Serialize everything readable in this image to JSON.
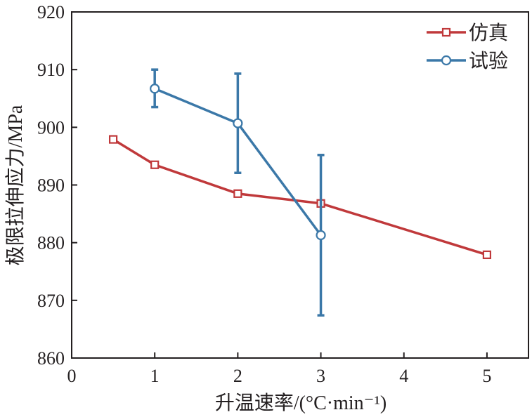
{
  "chart_data": {
    "type": "line",
    "title": "",
    "xlabel": "升温速率/(°C·min⁻¹)",
    "ylabel": "极限拉伸应力/MPa",
    "xlim": [
      0,
      5.5
    ],
    "ylim": [
      860,
      920
    ],
    "xticks": [
      0,
      1,
      2,
      3,
      4,
      5
    ],
    "yticks": [
      860,
      870,
      880,
      890,
      900,
      910,
      920
    ],
    "grid": false,
    "legend_position": "top-right",
    "series": [
      {
        "name": "仿真",
        "color": "#c0393b",
        "marker": "square",
        "x": [
          0.5,
          1,
          2,
          3,
          5
        ],
        "y": [
          897.9,
          893.5,
          888.5,
          886.8,
          877.9
        ]
      },
      {
        "name": "试验",
        "color": "#3b78a8",
        "marker": "circle",
        "x": [
          1,
          2,
          3
        ],
        "y": [
          906.7,
          900.7,
          881.3
        ],
        "error_low": [
          903.5,
          892.1,
          867.4
        ],
        "error_high": [
          910.0,
          909.3,
          895.2
        ]
      }
    ]
  }
}
